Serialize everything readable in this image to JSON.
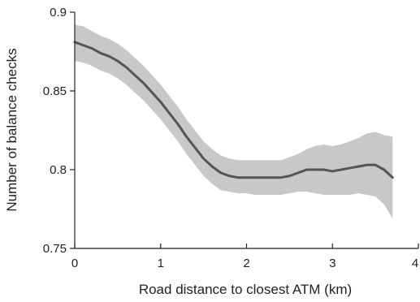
{
  "chart_data": {
    "type": "line",
    "title": "",
    "xlabel": "Road distance to closest ATM (km)",
    "ylabel": "Number of balance checks",
    "xlim": [
      0,
      4
    ],
    "ylim": [
      0.75,
      0.9
    ],
    "xticks": [
      0,
      1,
      2,
      3,
      4
    ],
    "yticks": [
      0.75,
      0.8,
      0.85,
      0.9
    ],
    "xtick_labels": [
      "0",
      "1",
      "2",
      "3",
      "4"
    ],
    "ytick_labels": [
      "0.75",
      "0.8",
      "0.85",
      "0.9"
    ],
    "grid": false,
    "legend": "none",
    "colors": {
      "line": "#555555",
      "band": "#c8c8c8",
      "axis": "#222222"
    },
    "series": [
      {
        "x": [
          0,
          0.1,
          0.2,
          0.3,
          0.4,
          0.5,
          0.6,
          0.7,
          0.8,
          0.9,
          1.0,
          1.1,
          1.2,
          1.3,
          1.4,
          1.5,
          1.6,
          1.7,
          1.8,
          1.9,
          2.0,
          2.1,
          2.2,
          2.3,
          2.4,
          2.5,
          2.6,
          2.7,
          2.8,
          2.9,
          3.0,
          3.1,
          3.2,
          3.3,
          3.4,
          3.5,
          3.6,
          3.7
        ],
        "y": [
          0.881,
          0.879,
          0.877,
          0.874,
          0.872,
          0.869,
          0.865,
          0.86,
          0.855,
          0.849,
          0.843,
          0.836,
          0.829,
          0.821,
          0.814,
          0.807,
          0.802,
          0.798,
          0.796,
          0.795,
          0.795,
          0.795,
          0.795,
          0.795,
          0.795,
          0.796,
          0.798,
          0.8,
          0.8,
          0.8,
          0.799,
          0.8,
          0.801,
          0.802,
          0.803,
          0.803,
          0.8,
          0.795
        ],
        "lower": [
          0.869,
          0.868,
          0.866,
          0.863,
          0.861,
          0.858,
          0.854,
          0.849,
          0.844,
          0.838,
          0.832,
          0.825,
          0.818,
          0.81,
          0.803,
          0.796,
          0.791,
          0.787,
          0.786,
          0.785,
          0.785,
          0.784,
          0.784,
          0.784,
          0.784,
          0.785,
          0.786,
          0.786,
          0.785,
          0.784,
          0.784,
          0.784,
          0.784,
          0.785,
          0.784,
          0.783,
          0.778,
          0.769
        ],
        "upper": [
          0.892,
          0.891,
          0.888,
          0.885,
          0.883,
          0.88,
          0.876,
          0.871,
          0.866,
          0.86,
          0.854,
          0.847,
          0.84,
          0.832,
          0.825,
          0.818,
          0.813,
          0.809,
          0.807,
          0.806,
          0.806,
          0.806,
          0.806,
          0.806,
          0.806,
          0.808,
          0.81,
          0.813,
          0.815,
          0.816,
          0.815,
          0.816,
          0.818,
          0.82,
          0.823,
          0.824,
          0.822,
          0.821
        ]
      }
    ]
  }
}
